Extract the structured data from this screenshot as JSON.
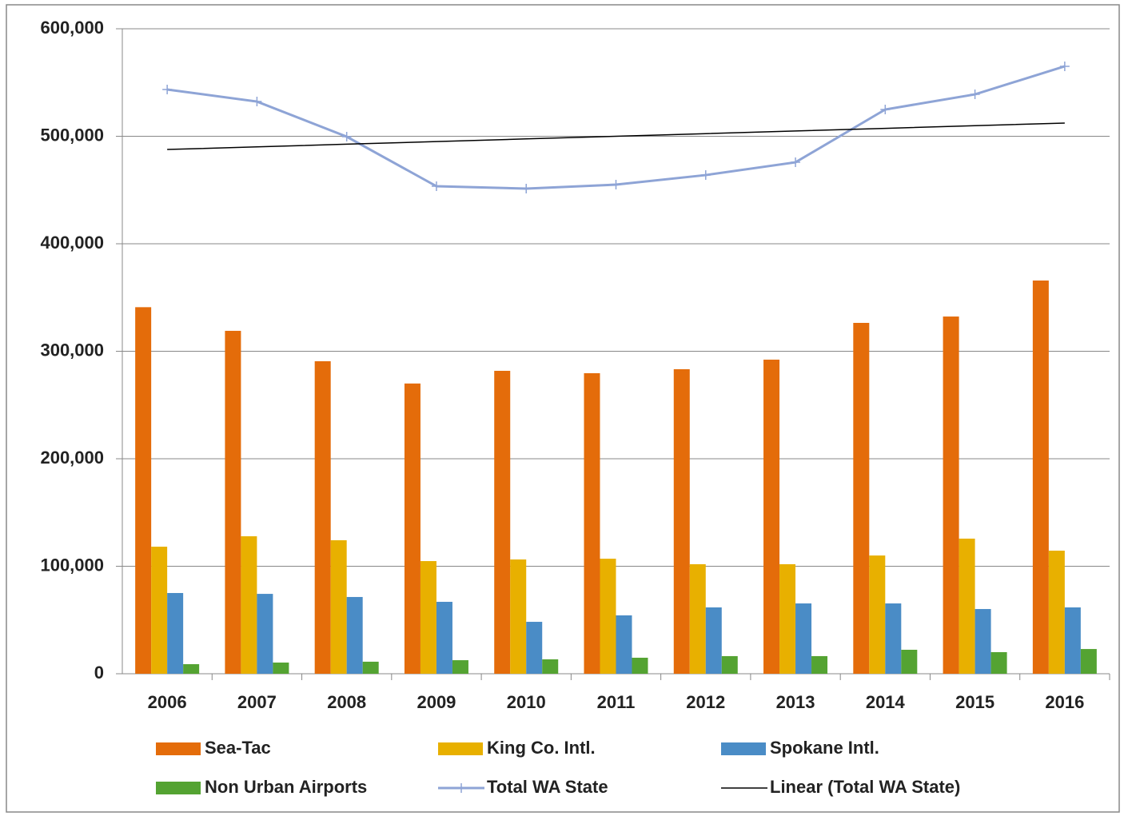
{
  "chart_data": {
    "type": "bar-line",
    "categories": [
      "2006",
      "2007",
      "2008",
      "2009",
      "2010",
      "2011",
      "2012",
      "2013",
      "2014",
      "2015",
      "2016"
    ],
    "series": [
      {
        "name": "Sea-Tac",
        "type": "bar",
        "color": "#e46c0a",
        "values": [
          341000,
          319000,
          290700,
          270000,
          281800,
          279600,
          283300,
          292200,
          326400,
          332300,
          365800
        ]
      },
      {
        "name": "King Co. Intl.",
        "type": "bar",
        "color": "#e8b000",
        "values": [
          118200,
          127900,
          124200,
          104800,
          106300,
          107000,
          101900,
          101900,
          110000,
          125700,
          114500
        ]
      },
      {
        "name": "Spokane Intl.",
        "type": "bar",
        "color": "#4a8cc6",
        "values": [
          75100,
          74300,
          71400,
          66900,
          48300,
          54300,
          61700,
          65400,
          65400,
          60200,
          61700
        ]
      },
      {
        "name": "Non Urban Airports",
        "type": "bar",
        "color": "#54a332",
        "values": [
          8900,
          10400,
          11200,
          12600,
          13400,
          14900,
          16400,
          16400,
          22300,
          20100,
          23000
        ]
      },
      {
        "name": "Total WA State",
        "type": "line",
        "marker": "plus",
        "color": "#8ea4d6",
        "values": [
          543500,
          532300,
          499600,
          453500,
          451300,
          455000,
          463900,
          475800,
          524900,
          539000,
          565100
        ]
      },
      {
        "name": "Linear (Total WA State)",
        "type": "line",
        "color": "#000000",
        "values": [
          487700,
          490160,
          492620,
          495080,
          497540,
          500000,
          502460,
          504920,
          507380,
          509840,
          512300
        ]
      }
    ],
    "ylim": [
      0,
      600000
    ],
    "yticks": [
      0,
      {
        "value": 100000,
        "label": "100,000"
      },
      {
        "value": 200000,
        "label": "200,000"
      },
      {
        "value": 300000,
        "label": "300,000"
      },
      {
        "value": 400000,
        "label": "400,000"
      },
      {
        "value": 500000,
        "label": "500,000"
      },
      {
        "value": 600000,
        "label": "600,000"
      }
    ],
    "grid": true,
    "legend": "bottom"
  }
}
